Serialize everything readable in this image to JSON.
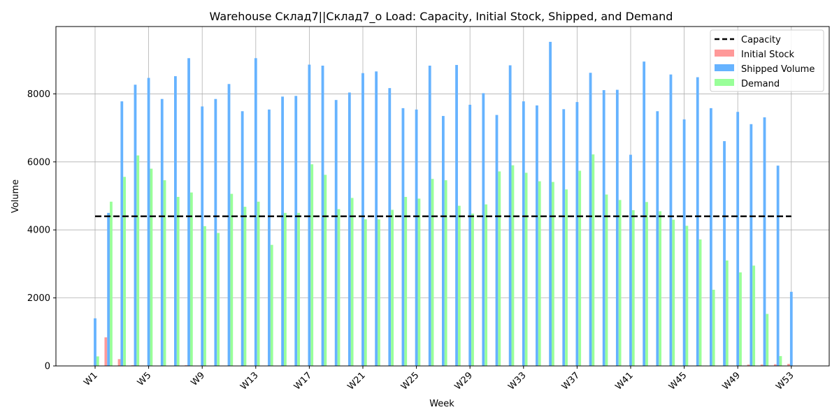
{
  "chart_data": {
    "type": "bar",
    "title": "Warehouse Склад7||Склад7_о Load: Capacity, Initial Stock, Shipped, and Demand",
    "xlabel": "Week",
    "ylabel": "Volume",
    "ylim": [
      0,
      9980
    ],
    "yticks": [
      0,
      2000,
      4000,
      6000,
      8000
    ],
    "grid": true,
    "legend_position": "top-right",
    "categories": [
      "W1",
      "W2",
      "W3",
      "W4",
      "W5",
      "W6",
      "W7",
      "W8",
      "W9",
      "W10",
      "W11",
      "W12",
      "W13",
      "W14",
      "W15",
      "W16",
      "W17",
      "W18",
      "W19",
      "W20",
      "W21",
      "W22",
      "W23",
      "W24",
      "W25",
      "W26",
      "W27",
      "W28",
      "W29",
      "W30",
      "W31",
      "W32",
      "W33",
      "W34",
      "W35",
      "W36",
      "W37",
      "W38",
      "W39",
      "W40",
      "W41",
      "W42",
      "W43",
      "W44",
      "W45",
      "W46",
      "W47",
      "W48",
      "W49",
      "W50",
      "W51",
      "W52",
      "W53"
    ],
    "xtick_labels": [
      "W1",
      "W5",
      "W9",
      "W13",
      "W17",
      "W21",
      "W25",
      "W29",
      "W33",
      "W37",
      "W41",
      "W45",
      "W49",
      "W53"
    ],
    "capacity": {
      "name": "Capacity",
      "value": 4400,
      "color": "#000000"
    },
    "series": [
      {
        "name": "Initial Stock",
        "color": "#ff9999",
        "values": [
          0,
          840,
          200,
          20,
          10,
          10,
          10,
          20,
          10,
          10,
          10,
          10,
          10,
          10,
          10,
          10,
          10,
          10,
          10,
          10,
          10,
          10,
          10,
          10,
          10,
          10,
          10,
          10,
          10,
          10,
          10,
          10,
          10,
          10,
          10,
          10,
          10,
          10,
          10,
          10,
          10,
          10,
          10,
          10,
          10,
          10,
          10,
          10,
          10,
          40,
          40,
          50,
          60
        ]
      },
      {
        "name": "Shipped Volume",
        "color": "#66b3ff",
        "values": [
          1400,
          4500,
          7780,
          8270,
          8470,
          7850,
          8520,
          9050,
          7630,
          7850,
          8290,
          7490,
          9050,
          7540,
          7920,
          7940,
          8860,
          8830,
          7820,
          8040,
          8610,
          8660,
          8170,
          7580,
          7540,
          8830,
          7350,
          8850,
          7680,
          8020,
          7380,
          8840,
          7780,
          7660,
          9530,
          7550,
          7760,
          8620,
          8110,
          8120,
          6210,
          8950,
          7490,
          8570,
          7250,
          8490,
          7580,
          6610,
          7470,
          7110,
          7310,
          5890,
          2180
        ]
      },
      {
        "name": "Demand",
        "color": "#99ff99",
        "values": [
          280,
          4830,
          5560,
          6190,
          5800,
          5460,
          4970,
          5100,
          4110,
          3910,
          5060,
          4680,
          4830,
          3560,
          4500,
          4500,
          5930,
          5620,
          4610,
          4940,
          4310,
          4310,
          4590,
          4970,
          4920,
          5500,
          5460,
          4710,
          4480,
          4750,
          5720,
          5900,
          5680,
          5430,
          5410,
          5190,
          5740,
          6220,
          5040,
          4880,
          4580,
          4820,
          4550,
          4300,
          4120,
          3720,
          2240,
          3100,
          2750,
          2950,
          1530,
          290,
          0
        ]
      }
    ]
  }
}
